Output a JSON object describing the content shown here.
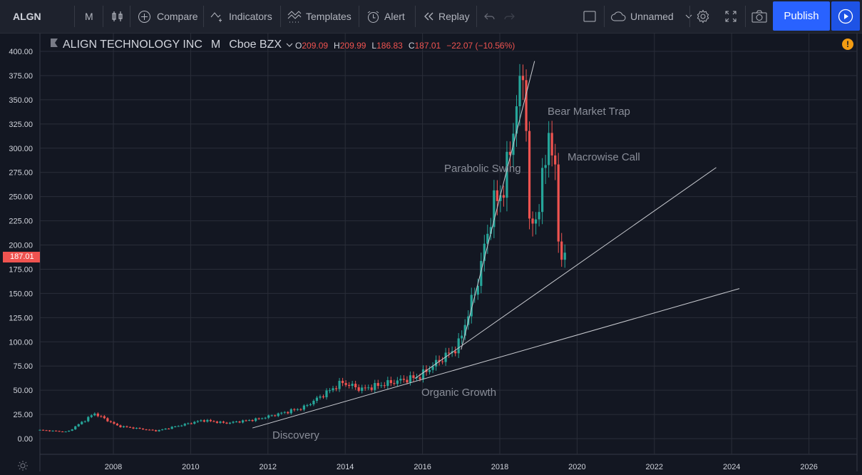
{
  "toolbar": {
    "symbol": "ALGN",
    "interval": "M",
    "compare": "Compare",
    "indicators": "Indicators",
    "templates": "Templates",
    "alert": "Alert",
    "replay": "Replay",
    "layout_name": "Unnamed",
    "publish": "Publish"
  },
  "legend": {
    "name": "ALIGN TECHNOLOGY INC",
    "interval": "M",
    "exchange": "Cboe BZX",
    "open_key": "O",
    "open": "209.09",
    "high_key": "H",
    "high": "209.99",
    "low_key": "L",
    "low": "186.83",
    "close_key": "C",
    "close": "187.01",
    "change": "−22.07 (−10.56%)"
  },
  "last_price_label": "187.01",
  "annotations": {
    "discovery": "Discovery",
    "organic_growth": "Organic Growth",
    "parabolic_swing": "Parabolic Swing",
    "bear_market_trap": "Bear Market Trap",
    "macrowise_call": "Macrowise Call"
  },
  "colors": {
    "background": "#131722",
    "grid": "#2a2e39",
    "up": "#26a69a",
    "down": "#ef5350",
    "accent": "#2962ff"
  },
  "chart_data": {
    "type": "candlestick",
    "interval": "monthly",
    "y_ticks": [
      "400.00",
      "375.00",
      "350.00",
      "325.00",
      "300.00",
      "275.00",
      "250.00",
      "225.00",
      "200.00",
      "175.00",
      "150.00",
      "125.00",
      "100.00",
      "75.00",
      "50.00",
      "25.00",
      "0.00"
    ],
    "x_ticks": [
      "2008",
      "2010",
      "2012",
      "2014",
      "2016",
      "2018",
      "2020",
      "2022",
      "2024",
      "2026"
    ],
    "ylim": [
      0,
      400
    ],
    "xlim": [
      2006.0,
      2027.2
    ],
    "grid": true,
    "key_points": [
      {
        "x": 2006.1,
        "y": 9
      },
      {
        "x": 2006.9,
        "y": 7
      },
      {
        "x": 2007.6,
        "y": 26
      },
      {
        "x": 2008.2,
        "y": 13
      },
      {
        "x": 2009.2,
        "y": 8
      },
      {
        "x": 2010.4,
        "y": 19
      },
      {
        "x": 2011.0,
        "y": 16
      },
      {
        "x": 2011.8,
        "y": 20
      },
      {
        "x": 2013.0,
        "y": 32
      },
      {
        "x": 2014.0,
        "y": 58
      },
      {
        "x": 2014.5,
        "y": 51
      },
      {
        "x": 2015.5,
        "y": 60
      },
      {
        "x": 2016.0,
        "y": 64
      },
      {
        "x": 2016.5,
        "y": 80
      },
      {
        "x": 2017.0,
        "y": 95
      },
      {
        "x": 2017.5,
        "y": 160
      },
      {
        "x": 2017.9,
        "y": 240
      },
      {
        "x": 2018.2,
        "y": 260
      },
      {
        "x": 2018.5,
        "y": 340
      },
      {
        "x": 2018.75,
        "y": 390
      },
      {
        "x": 2018.8,
        "y": 215
      },
      {
        "x": 2019.0,
        "y": 225
      },
      {
        "x": 2019.2,
        "y": 265
      },
      {
        "x": 2019.35,
        "y": 320
      },
      {
        "x": 2019.5,
        "y": 280
      },
      {
        "x": 2019.6,
        "y": 209
      },
      {
        "x": 2019.7,
        "y": 187
      }
    ],
    "trend_lines": [
      {
        "name": "Discovery",
        "from": {
          "x": 2011.6,
          "y": 11
        },
        "to": {
          "x": 2024.2,
          "y": 155
        }
      },
      {
        "name": "Organic Growth",
        "from": {
          "x": 2015.8,
          "y": 62
        },
        "to": {
          "x": 2023.6,
          "y": 280
        }
      },
      {
        "name": "Parabolic Swing",
        "from": {
          "x": 2017.0,
          "y": 92
        },
        "to": {
          "x": 2018.9,
          "y": 390
        }
      }
    ]
  }
}
